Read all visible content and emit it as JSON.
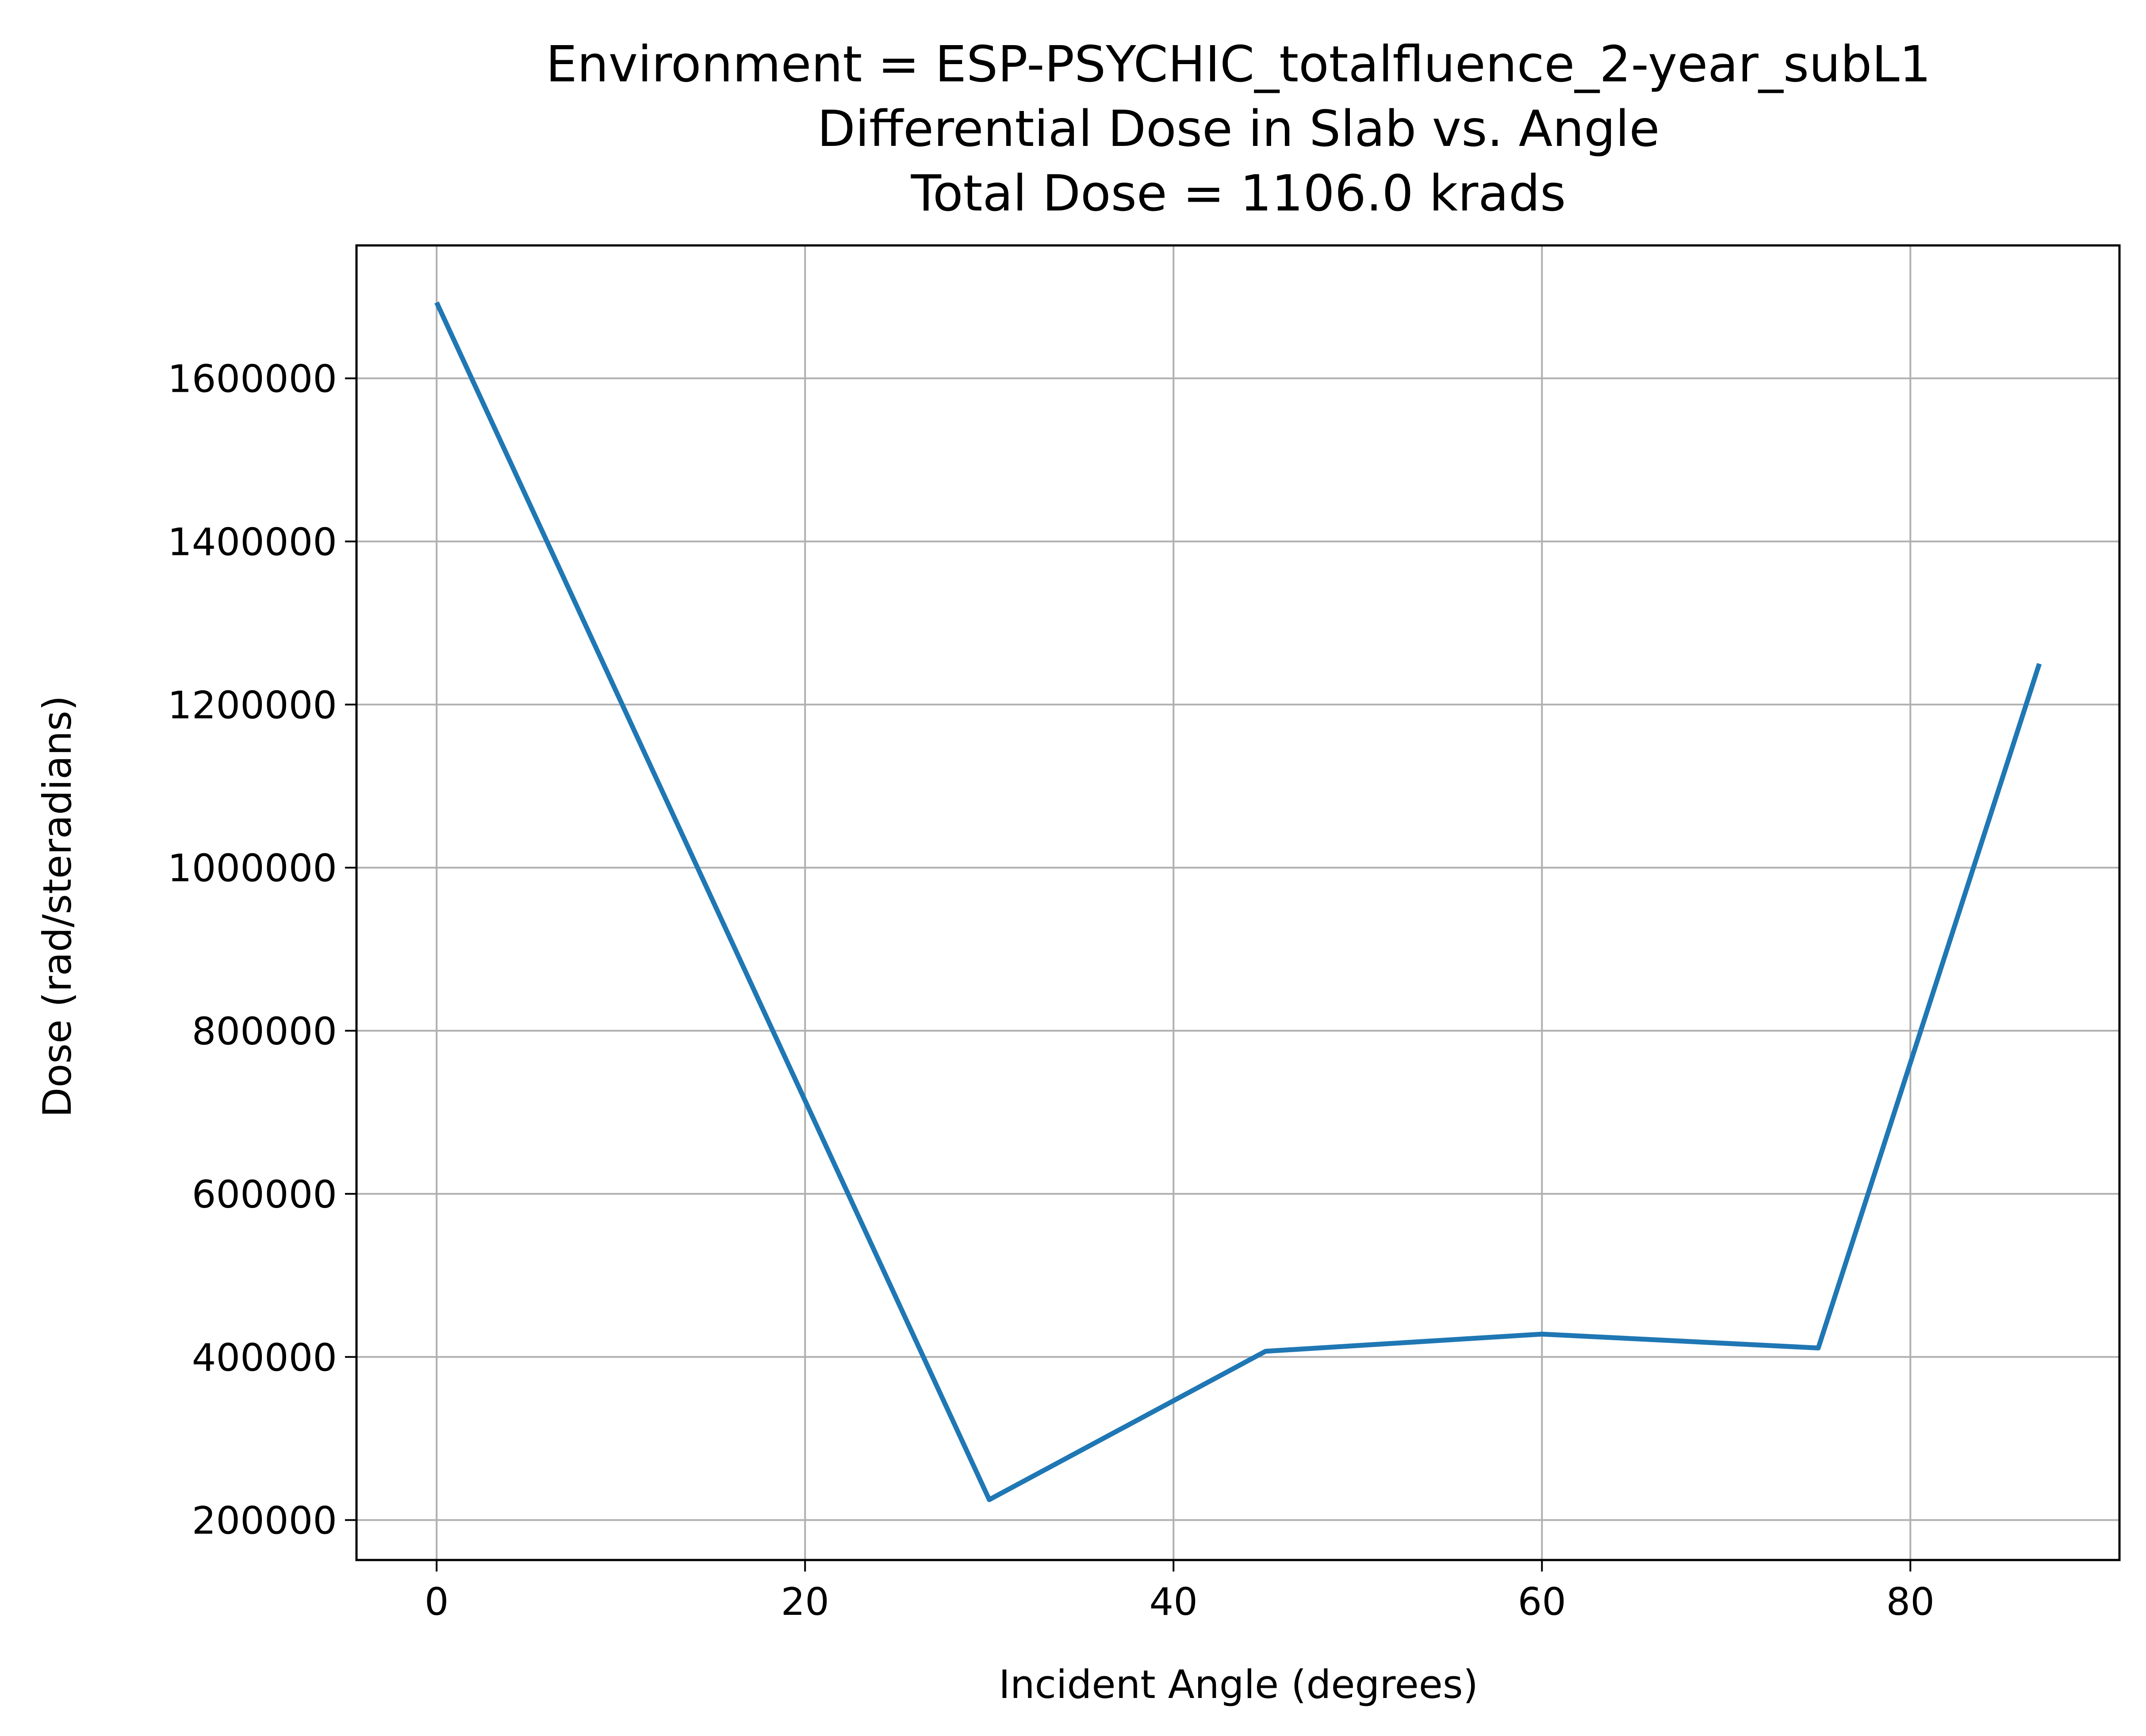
{
  "chart_data": {
    "type": "line",
    "title_lines": [
      "Environment = ESP-PSYCHIC_totalfluence_2-year_subL1",
      "Differential Dose in Slab vs. Angle",
      "Total Dose = 1106.0 krads"
    ],
    "xlabel": "Incident Angle (degrees)",
    "ylabel": "Dose (rad/steradians)",
    "xlim": [
      -4.35,
      91.35
    ],
    "ylim": [
      151000,
      1763000
    ],
    "x_ticks": [
      0,
      20,
      40,
      60,
      80
    ],
    "x_tick_labels": [
      "0",
      "20",
      "40",
      "60",
      "80"
    ],
    "y_ticks": [
      200000,
      400000,
      600000,
      800000,
      1000000,
      1200000,
      1400000,
      1600000
    ],
    "y_tick_labels": [
      "200000",
      "400000",
      "600000",
      "800000",
      "1000000",
      "1200000",
      "1400000",
      "1600000"
    ],
    "grid": true,
    "series": [
      {
        "color": "#1f77b4",
        "x": [
          0,
          30,
          45,
          60,
          75,
          87
        ],
        "y": [
          1693000,
          225000,
          407000,
          428000,
          411000,
          1250000
        ]
      }
    ]
  }
}
